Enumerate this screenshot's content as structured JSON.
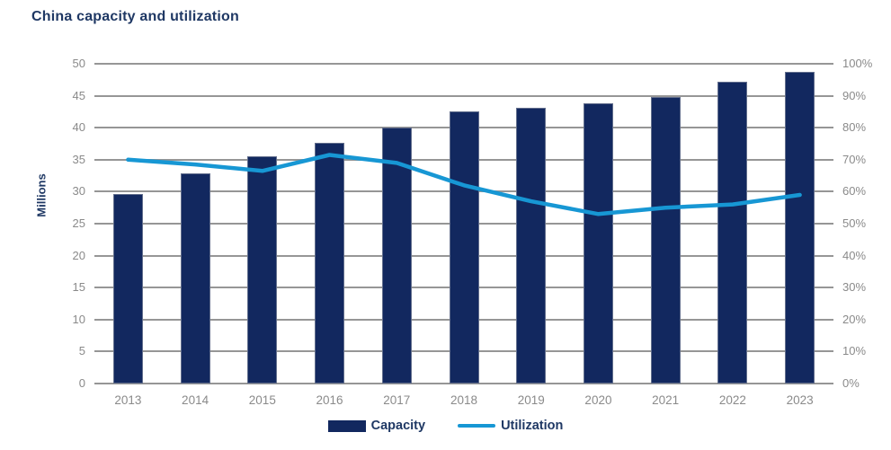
{
  "title": "China capacity and utilization",
  "chart_data": {
    "type": "bar+line combo",
    "title": "China capacity and utilization",
    "categories": [
      "2013",
      "2014",
      "2015",
      "2016",
      "2017",
      "2018",
      "2019",
      "2020",
      "2021",
      "2022",
      "2023"
    ],
    "series": [
      {
        "name": "Capacity",
        "type": "bar",
        "axis": "left",
        "values": [
          29.7,
          32.8,
          35.6,
          37.7,
          40.0,
          42.6,
          43.1,
          43.8,
          44.8,
          47.2,
          48.7
        ]
      },
      {
        "name": "Utilization",
        "type": "line",
        "axis": "right",
        "values": [
          70,
          68.5,
          66.5,
          71.5,
          69,
          62,
          57,
          53,
          55,
          56,
          59
        ]
      }
    ],
    "left_axis": {
      "label": "Millions",
      "min": 0,
      "max": 50,
      "step": 5
    },
    "right_axis": {
      "min": 0,
      "max": 100,
      "step": 10,
      "suffix": "%"
    },
    "legend_position": "bottom-center",
    "grid": "horizontal",
    "colors": {
      "bar": "#12285f",
      "line": "#1797d4",
      "grid": "#969696",
      "axis_text": "#8a8a8a",
      "title_text": "#1f3864",
      "background": "#ffffff"
    }
  }
}
